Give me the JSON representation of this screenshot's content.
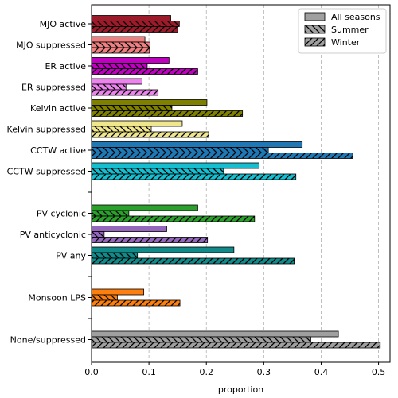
{
  "chart_data": {
    "type": "bar",
    "orientation": "horizontal",
    "xlabel": "proportion",
    "xlim": [
      0,
      0.52
    ],
    "xticks": [
      "0.0",
      "0.1",
      "0.2",
      "0.3",
      "0.4",
      "0.5"
    ],
    "xtick_values": [
      0,
      0.1,
      0.2,
      0.3,
      0.4,
      0.5
    ],
    "grid": "vertical dashed",
    "legend_position": "top-right",
    "series": [
      {
        "name": "All seasons",
        "hatch": "none"
      },
      {
        "name": "Summer",
        "hatch": "backslash"
      },
      {
        "name": "Winter",
        "hatch": "slash"
      }
    ],
    "categories": [
      {
        "label": "MJO active",
        "color": "#9b1b2a",
        "values": [
          0.138,
          0.153,
          0.15
        ]
      },
      {
        "label": "MJO suppressed",
        "color": "#f08080",
        "values": [
          0.093,
          0.102,
          0.101
        ]
      },
      {
        "label": "ER active",
        "color": "#c000c0",
        "values": [
          0.135,
          0.097,
          0.185
        ]
      },
      {
        "label": "ER suppressed",
        "color": "#ee82ee",
        "values": [
          0.088,
          0.06,
          0.116
        ]
      },
      {
        "label": "Kelvin active",
        "color": "#808000",
        "values": [
          0.201,
          0.14,
          0.263
        ]
      },
      {
        "label": "Kelvin suppressed",
        "color": "#f0e68c",
        "values": [
          0.158,
          0.104,
          0.204
        ]
      },
      {
        "label": "CCTW active",
        "color": "#1f77b4",
        "values": [
          0.367,
          0.308,
          0.455
        ]
      },
      {
        "label": "CCTW suppressed",
        "color": "#17becf",
        "values": [
          0.292,
          0.23,
          0.356
        ]
      },
      {
        "label": "",
        "color": "#ffffff",
        "values": null
      },
      {
        "label": "PV cyclonic",
        "color": "#2ca02c",
        "values": [
          0.185,
          0.065,
          0.284
        ]
      },
      {
        "label": "PV anticyclonic",
        "color": "#9467bd",
        "values": [
          0.131,
          0.022,
          0.202
        ]
      },
      {
        "label": "PV any",
        "color": "#138a8a",
        "values": [
          0.248,
          0.08,
          0.353
        ]
      },
      {
        "label": "",
        "color": "#ffffff",
        "values": null
      },
      {
        "label": "Monsoon LPS",
        "color": "#ff7f0e",
        "values": [
          0.091,
          0.045,
          0.154
        ]
      },
      {
        "label": "",
        "color": "#ffffff",
        "values": null
      },
      {
        "label": "None/suppressed",
        "color": "#a0a0a0",
        "values": [
          0.43,
          0.382,
          0.503
        ]
      }
    ]
  }
}
